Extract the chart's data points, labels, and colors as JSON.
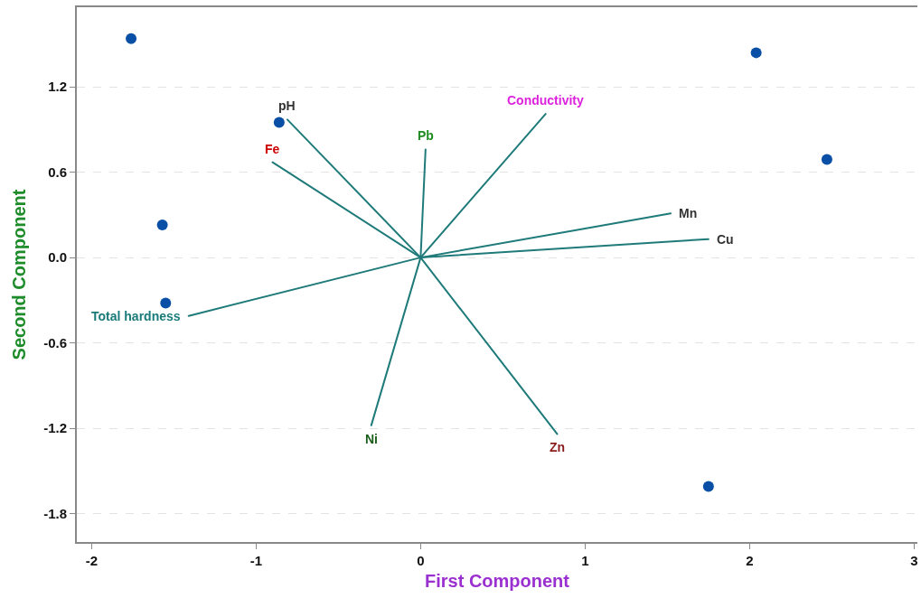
{
  "chart_data": {
    "type": "scatter",
    "xlabel": "First Component",
    "ylabel": "Second Component",
    "xlim": [
      -2.09,
      3.02
    ],
    "ylim": [
      -2.0,
      1.76
    ],
    "xticks": [
      -2,
      -1,
      0,
      1,
      2,
      3
    ],
    "yticks": [
      {
        "value": 1.2,
        "label": "1.2"
      },
      {
        "value": 0.6,
        "label": "0.6"
      },
      {
        "value": 0,
        "label": "0.0"
      },
      {
        "value": -0.6,
        "label": "-0.6"
      },
      {
        "value": -1.2,
        "label": "-1.2"
      },
      {
        "value": -1.8,
        "label": "-1.8"
      }
    ],
    "grid": "y",
    "marker": "circle",
    "series": [
      {
        "color": "#0a4fa6",
        "x": [
          -1.76,
          2.04,
          2.47,
          -1.57,
          -1.55,
          -0.86,
          1.75
        ],
        "values": [
          1.54,
          1.44,
          0.69,
          0.23,
          -0.32,
          0.95,
          -1.61
        ]
      },
      {
        "type": "line",
        "marker": "none",
        "color": "#1f7a7a",
        "x": [
          0,
          -0.81,
          null,
          0,
          -0.9,
          null,
          0,
          0.03,
          null,
          0,
          0.76,
          null,
          0,
          1.52,
          null,
          0,
          1.75,
          null,
          0,
          -1.41,
          null,
          0,
          -0.3,
          null,
          0,
          0.83
        ],
        "values": [
          0,
          0.97,
          null,
          0,
          0.67,
          null,
          0,
          0.76,
          null,
          0,
          1.01,
          null,
          0,
          0.31,
          null,
          0,
          0.13,
          null,
          0,
          -0.41,
          null,
          0,
          -1.18,
          null,
          0,
          -1.24
        ],
        "value_labels": [
          null,
          "pH",
          null,
          null,
          "Fe",
          null,
          null,
          "Pb",
          null,
          null,
          "Conductivity",
          null,
          null,
          "Mn",
          null,
          null,
          "Cu",
          null,
          null,
          "Total hardness",
          null,
          null,
          "Ni",
          null,
          null,
          "Zn"
        ],
        "colors": [
          null,
          "#333333",
          null,
          null,
          "#cc0000",
          null,
          null,
          "#1e8c1e",
          null,
          null,
          "#dd22dd",
          null,
          null,
          "#333333",
          null,
          null,
          "#333333",
          null,
          null,
          "#1a7a7a",
          null,
          null,
          "#1a5c1a",
          null,
          null,
          "#8b1a1a"
        ]
      }
    ]
  }
}
